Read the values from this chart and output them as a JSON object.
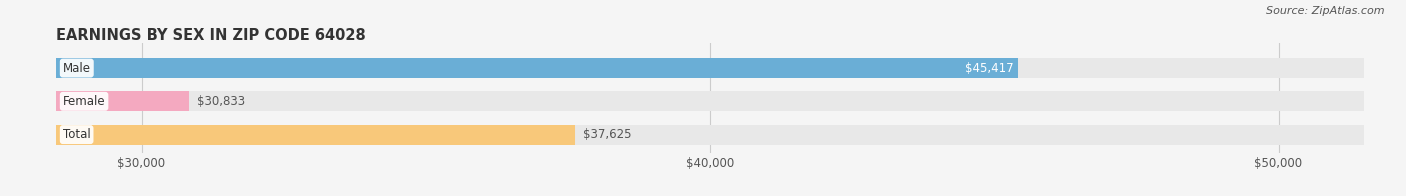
{
  "title": "EARNINGS BY SEX IN ZIP CODE 64028",
  "source": "Source: ZipAtlas.com",
  "categories": [
    "Male",
    "Female",
    "Total"
  ],
  "values": [
    45417,
    30833,
    37625
  ],
  "bar_colors": [
    "#6aaed6",
    "#f4a9c0",
    "#f8c87a"
  ],
  "bar_bg_color": "#e8e8e8",
  "x_min": 28500,
  "x_max": 51500,
  "tick_values": [
    30000,
    40000,
    50000
  ],
  "tick_labels": [
    "$30,000",
    "$40,000",
    "$50,000"
  ],
  "bar_height": 0.6,
  "figsize": [
    14.06,
    1.96
  ],
  "dpi": 100,
  "title_fontsize": 10.5,
  "tick_fontsize": 8.5,
  "label_fontsize": 8.5,
  "category_fontsize": 8.5,
  "value_labels": [
    "$45,417",
    "$30,833",
    "$37,625"
  ],
  "bg_color": "#f5f5f5"
}
